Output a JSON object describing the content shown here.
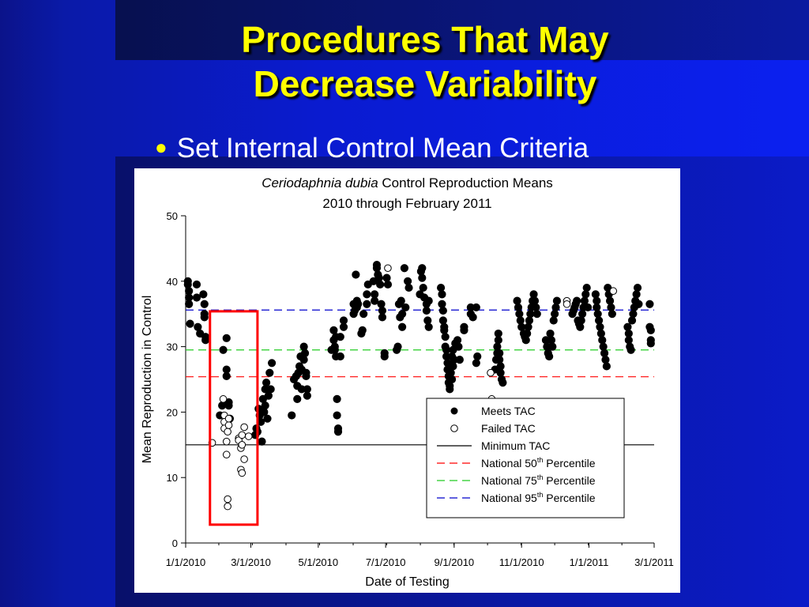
{
  "slide": {
    "title_line1": "Procedures That May",
    "title_line2": "Decrease Variability",
    "bullet": "Set Internal Control Mean Criteria"
  },
  "chart_data": {
    "type": "scatter",
    "title_italic": "Ceriodaphnia dubia",
    "title_rest": " Control Reproduction Means",
    "subtitle": "2010 through February 2011",
    "xlabel": "Date of Testing",
    "ylabel": "Mean Reproduction in Control",
    "x_ticks": [
      "1/1/2010",
      "3/1/2010",
      "5/1/2010",
      "7/1/2010",
      "9/1/2010",
      "11/1/2010",
      "1/1/2011",
      "3/1/2011"
    ],
    "x_tick_days": [
      0,
      59,
      120,
      181,
      243,
      304,
      365,
      424
    ],
    "xlim_days": [
      0,
      424
    ],
    "ylim": [
      0,
      50
    ],
    "y_ticks": [
      0,
      10,
      20,
      30,
      40,
      50
    ],
    "grid": false,
    "legend_position": "lower-right",
    "reference_lines": [
      {
        "name": "Minimum TAC",
        "y": 15,
        "color": "#000000",
        "dash": "none"
      },
      {
        "name": "National 50",
        "sup": "th",
        "suffix": " Percentile",
        "y": 25.4,
        "color": "#ff0000",
        "dash": "10,6"
      },
      {
        "name": "National 75",
        "sup": "th",
        "suffix": " Percentile",
        "y": 29.5,
        "color": "#22cc22",
        "dash": "10,6"
      },
      {
        "name": "National 95",
        "sup": "th",
        "suffix": " Percentile",
        "y": 35.6,
        "color": "#0000cc",
        "dash": "10,6"
      }
    ],
    "series": [
      {
        "name": "Meets TAC",
        "marker": "filled",
        "x": [
          2,
          2,
          3,
          3,
          3,
          4,
          10,
          10,
          11,
          13,
          16,
          17,
          17,
          17,
          18,
          18,
          31,
          33,
          34,
          37,
          37,
          37,
          38,
          39,
          39,
          40,
          63,
          64,
          65,
          66,
          67,
          68,
          69,
          70,
          71,
          72,
          72,
          73,
          74,
          75,
          76,
          77,
          78,
          96,
          98,
          100,
          101,
          101,
          102,
          103,
          104,
          105,
          105,
          107,
          107,
          108,
          109,
          109,
          110,
          110,
          132,
          134,
          134,
          135,
          135,
          136,
          136,
          137,
          137,
          138,
          138,
          140,
          140,
          143,
          143,
          152,
          152,
          153,
          154,
          155,
          155,
          156,
          159,
          160,
          161,
          164,
          164,
          165,
          170,
          171,
          171,
          173,
          173,
          174,
          175,
          176,
          177,
          178,
          178,
          180,
          180,
          182,
          183,
          191,
          192,
          193,
          194,
          195,
          196,
          196,
          198,
          199,
          201,
          202,
          212,
          213,
          214,
          214,
          215,
          216,
          218,
          218,
          219,
          220,
          220,
          231,
          232,
          232,
          233,
          233,
          234,
          234,
          235,
          235,
          236,
          236,
          237,
          237,
          238,
          238,
          239,
          239,
          240,
          240,
          241,
          241,
          242,
          242,
          243,
          244,
          246,
          247,
          248,
          252,
          252,
          258,
          258,
          260,
          263,
          263,
          264,
          280,
          281,
          282,
          282,
          283,
          283,
          284,
          284,
          285,
          285,
          286,
          287,
          300,
          301,
          302,
          303,
          304,
          306,
          307,
          308,
          309,
          310,
          311,
          312,
          313,
          314,
          315,
          316,
          317,
          318,
          326,
          327,
          328,
          329,
          330,
          331,
          332,
          333,
          334,
          335,
          336,
          350,
          351,
          352,
          353,
          354,
          355,
          356,
          357,
          358,
          359,
          360,
          361,
          362,
          363,
          364,
          371,
          372,
          372,
          373,
          374,
          375,
          376,
          377,
          378,
          379,
          380,
          381,
          382,
          383,
          384,
          385,
          386,
          400,
          401,
          401,
          402,
          403,
          404,
          405,
          406,
          407,
          408,
          409,
          410,
          420,
          420,
          421,
          421,
          421
        ],
        "y": [
          40,
          39.5,
          38.5,
          36.5,
          37.5,
          33.5,
          39.5,
          37.5,
          33,
          32,
          38,
          36.5,
          35,
          34.5,
          31.5,
          31,
          19.5,
          21,
          29.5,
          31.3,
          26.5,
          25.5,
          18.5,
          21.5,
          21,
          19,
          16.5,
          17.5,
          17,
          20.5,
          19.5,
          18.5,
          15.5,
          22,
          20,
          23.5,
          21,
          24.5,
          19,
          22.5,
          26,
          23.5,
          27.5,
          19.5,
          25,
          25.5,
          22,
          24,
          26,
          27,
          28.5,
          23.5,
          26.5,
          30,
          28,
          29,
          25.5,
          26,
          23.5,
          22.5,
          29.5,
          31,
          32.5,
          30,
          29.5,
          31.5,
          28.5,
          22,
          19.5,
          17.5,
          17,
          31.5,
          28.5,
          33,
          34,
          35,
          36.5,
          35.5,
          41,
          37,
          36,
          36.5,
          32,
          32.5,
          35,
          36.5,
          38,
          39.5,
          40,
          37,
          38,
          42.5,
          42,
          41,
          40.5,
          39.5,
          36.5,
          35.5,
          34.5,
          29,
          28.5,
          40.5,
          39.5,
          29.5,
          30,
          36.5,
          34.5,
          37,
          35,
          33,
          42,
          36,
          40,
          39,
          38,
          41.5,
          40.5,
          42,
          39,
          37.5,
          36.5,
          35.5,
          34,
          33,
          37,
          39,
          38,
          36.5,
          35.5,
          34,
          33,
          32.5,
          31.5,
          30,
          29.5,
          28.5,
          27.5,
          26.5,
          25.5,
          24.5,
          24,
          23.5,
          27,
          26,
          25,
          28.5,
          29.5,
          27,
          28,
          30.5,
          31,
          30,
          28,
          33,
          32.5,
          36,
          35,
          34.5,
          36,
          27.5,
          28.5,
          26.5,
          28,
          29,
          30,
          31,
          32,
          29,
          28,
          27,
          26,
          25,
          24.5,
          37,
          36,
          35,
          34,
          33,
          32,
          31.5,
          31,
          32,
          33,
          34,
          35,
          36,
          37,
          38,
          37,
          36,
          35,
          31,
          30,
          29,
          28.5,
          32,
          31,
          30,
          34,
          35,
          36,
          37,
          35,
          35.5,
          36,
          36.5,
          37,
          34,
          33.5,
          33,
          34,
          35,
          36,
          37,
          38,
          39,
          36,
          38,
          37,
          36,
          35,
          34,
          33,
          32,
          31,
          30,
          29,
          28,
          27,
          39,
          38,
          37,
          36,
          35,
          33,
          32,
          31,
          30,
          29.5,
          34,
          35,
          36,
          37,
          38,
          39,
          36.5,
          36.5,
          33,
          32.5,
          31,
          30.5
        ]
      },
      {
        "name": "Failed TAC",
        "marker": "open",
        "x": [
          24,
          34,
          35,
          35,
          35,
          37,
          37,
          38,
          38,
          38,
          39,
          39,
          48,
          48,
          50,
          50,
          51,
          51,
          51,
          53,
          53,
          57,
          183,
          276,
          277,
          345,
          345,
          387
        ],
        "y": [
          15.3,
          22,
          19.5,
          18.5,
          17.5,
          15.5,
          13.5,
          6.7,
          5.6,
          17,
          18,
          19,
          16,
          15.7,
          14.5,
          11.2,
          10.7,
          15,
          16.5,
          17.7,
          12.8,
          16.3,
          42,
          26,
          22,
          37,
          36.5,
          38.5
        ]
      }
    ]
  }
}
